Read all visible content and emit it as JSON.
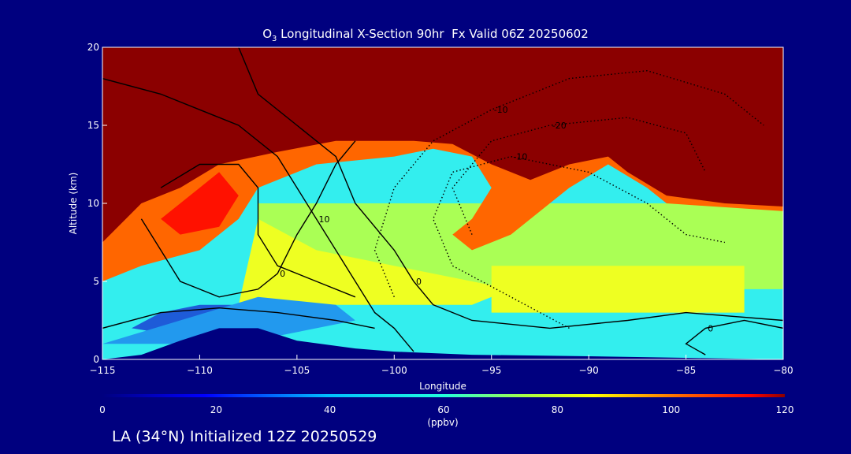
{
  "chart_data": {
    "type": "contour",
    "title_prefix": "O",
    "title_sub": "3",
    "title_rest": " Longitudinal X-Section 90hr  Fx Valid 06Z 20250602",
    "subtitle": "LA (34°N) Initialized 12Z 20250529",
    "xlabel": "Longitude",
    "ylabel": "Altitude (km)",
    "xlim": [
      -115,
      -80
    ],
    "ylim": [
      0,
      20
    ],
    "x_ticks": [
      -115,
      -110,
      -105,
      -100,
      -95,
      -90,
      -85,
      -80
    ],
    "y_ticks": [
      0,
      5,
      10,
      15,
      20
    ],
    "colorbar": {
      "label": "(ppbv)",
      "min": 0,
      "max": 120,
      "ticks": [
        0,
        20,
        40,
        60,
        80,
        100,
        120
      ]
    },
    "fill_regions": [
      {
        "color": "#33eeee",
        "points": [
          [
            -115,
            0
          ],
          [
            -80,
            0
          ],
          [
            -80,
            6
          ],
          [
            -115,
            6
          ]
        ]
      },
      {
        "color": "#aaff55",
        "points": [
          [
            -107,
            4.5
          ],
          [
            -80,
            4.5
          ],
          [
            -80,
            10
          ],
          [
            -107,
            10
          ]
        ]
      },
      {
        "color": "#eeff22",
        "points": [
          [
            -108,
            3.5
          ],
          [
            -96,
            3.5
          ],
          [
            -94,
            4.5
          ],
          [
            -100,
            6
          ],
          [
            -104,
            7
          ],
          [
            -107,
            9
          ]
        ]
      },
      {
        "color": "#eeff22",
        "points": [
          [
            -95,
            6
          ],
          [
            -82,
            6
          ],
          [
            -82,
            3
          ],
          [
            -95,
            3
          ]
        ]
      },
      {
        "color": "#ff6600",
        "points": [
          [
            -115,
            5
          ],
          [
            -113,
            6
          ],
          [
            -110,
            7
          ],
          [
            -108,
            9
          ],
          [
            -107,
            11
          ],
          [
            -104,
            12.5
          ],
          [
            -100,
            13
          ],
          [
            -98,
            13.5
          ],
          [
            -96,
            13
          ],
          [
            -95,
            11
          ],
          [
            -96,
            9
          ],
          [
            -97,
            8
          ],
          [
            -96,
            7
          ],
          [
            -94,
            8
          ],
          [
            -91,
            11
          ],
          [
            -89,
            12.5
          ],
          [
            -87,
            11
          ],
          [
            -86,
            10
          ],
          [
            -80,
            9.5
          ],
          [
            -80,
            20
          ],
          [
            -115,
            20
          ]
        ]
      },
      {
        "color": "#8b0000",
        "points": [
          [
            -115,
            7.5
          ],
          [
            -113,
            10
          ],
          [
            -111,
            11
          ],
          [
            -109,
            12.5
          ],
          [
            -106,
            13.3
          ],
          [
            -103,
            14
          ],
          [
            -99,
            14
          ],
          [
            -97,
            13.8
          ],
          [
            -95,
            12.5
          ],
          [
            -93,
            11.5
          ],
          [
            -91,
            12.5
          ],
          [
            -89,
            13
          ],
          [
            -88,
            12
          ],
          [
            -86,
            10.5
          ],
          [
            -83,
            10
          ],
          [
            -80,
            9.8
          ],
          [
            -80,
            20
          ],
          [
            -115,
            20
          ]
        ]
      },
      {
        "color": "#ff1100",
        "points": [
          [
            -112,
            9
          ],
          [
            -110,
            11
          ],
          [
            -109,
            12
          ],
          [
            -108,
            10.5
          ],
          [
            -109,
            8.5
          ],
          [
            -111,
            8
          ]
        ]
      },
      {
        "color": "#1e5bd8",
        "points": [
          [
            -113.5,
            2
          ],
          [
            -112,
            3
          ],
          [
            -110,
            3.5
          ],
          [
            -108,
            3.5
          ],
          [
            -107,
            3
          ],
          [
            -108,
            2
          ],
          [
            -111,
            1.5
          ]
        ]
      },
      {
        "color": "#2299ee",
        "points": [
          [
            -115,
            1
          ],
          [
            -111,
            2.5
          ],
          [
            -107,
            4
          ],
          [
            -103,
            3.5
          ],
          [
            -102,
            2.5
          ],
          [
            -106,
            1.5
          ],
          [
            -110,
            1
          ]
        ]
      }
    ],
    "terrain": [
      [
        -115,
        0
      ],
      [
        -113,
        0.3
      ],
      [
        -111,
        1.2
      ],
      [
        -109,
        2
      ],
      [
        -107,
        2
      ],
      [
        -105,
        1.2
      ],
      [
        -102,
        0.7
      ],
      [
        -100,
        0.5
      ],
      [
        -96,
        0.3
      ],
      [
        -90,
        0.2
      ],
      [
        -85,
        0.1
      ],
      [
        -80,
        0
      ],
      [
        -80,
        0
      ],
      [
        -115,
        0
      ]
    ],
    "contours": [
      {
        "label": "10",
        "style": "solid",
        "points": [
          [
            -115,
            18
          ],
          [
            -112,
            17
          ],
          [
            -110,
            16
          ],
          [
            -108,
            15
          ],
          [
            -106,
            13
          ],
          [
            -105,
            11
          ],
          [
            -104,
            9
          ],
          [
            -103,
            7
          ],
          [
            -102,
            5
          ],
          [
            -101,
            3
          ],
          [
            -100,
            2
          ],
          [
            -99,
            0.5
          ]
        ]
      },
      {
        "label": "0",
        "style": "solid",
        "points": [
          [
            -108,
            20
          ],
          [
            -107,
            17
          ],
          [
            -105,
            15
          ],
          [
            -103,
            13
          ],
          [
            -102,
            10
          ],
          [
            -100,
            7
          ],
          [
            -99,
            5
          ],
          [
            -98,
            3.5
          ],
          [
            -96,
            2.5
          ],
          [
            -92,
            2
          ],
          [
            -88,
            2.5
          ],
          [
            -85,
            3
          ],
          [
            -80,
            2.5
          ]
        ]
      },
      {
        "label": "",
        "style": "solid",
        "points": [
          [
            -112,
            11
          ],
          [
            -110,
            12.5
          ],
          [
            -108,
            12.5
          ],
          [
            -107,
            11
          ],
          [
            -107,
            8
          ],
          [
            -106,
            6
          ],
          [
            -104,
            5
          ],
          [
            -102,
            4
          ]
        ]
      },
      {
        "label": "0",
        "style": "solid",
        "points": [
          [
            -113,
            9
          ],
          [
            -112,
            7
          ],
          [
            -111,
            5
          ],
          [
            -109,
            4
          ],
          [
            -107,
            4.5
          ],
          [
            -106,
            5.5
          ],
          [
            -105,
            8
          ],
          [
            -104,
            10
          ],
          [
            -103,
            12.5
          ],
          [
            -102,
            14
          ]
        ]
      },
      {
        "label": "",
        "style": "solid",
        "points": [
          [
            -115,
            2
          ],
          [
            -112,
            3
          ],
          [
            -109,
            3.3
          ],
          [
            -106,
            3
          ],
          [
            -103,
            2.5
          ],
          [
            -101,
            2
          ]
        ]
      },
      {
        "label": "0",
        "style": "solid",
        "points": [
          [
            -84,
            0.3
          ],
          [
            -85,
            1
          ],
          [
            -84,
            2
          ],
          [
            -82,
            2.5
          ],
          [
            -80,
            2
          ]
        ]
      },
      {
        "label": "-10",
        "style": "dotted",
        "points": [
          [
            -100,
            4
          ],
          [
            -101,
            7
          ],
          [
            -100,
            11
          ],
          [
            -98,
            14
          ],
          [
            -95,
            16
          ],
          [
            -91,
            18
          ],
          [
            -87,
            18.5
          ],
          [
            -83,
            17
          ],
          [
            -81,
            15
          ]
        ]
      },
      {
        "label": "-20",
        "style": "dotted",
        "points": [
          [
            -96,
            8
          ],
          [
            -97,
            11
          ],
          [
            -95,
            14
          ],
          [
            -92,
            15
          ],
          [
            -88,
            15.5
          ],
          [
            -85,
            14.5
          ],
          [
            -84,
            12
          ]
        ]
      },
      {
        "label": "-10",
        "style": "dotted",
        "points": [
          [
            -91,
            2
          ],
          [
            -94,
            4
          ],
          [
            -97,
            6
          ],
          [
            -98,
            9
          ],
          [
            -97,
            12
          ],
          [
            -94,
            13
          ],
          [
            -90,
            12
          ],
          [
            -87,
            10
          ],
          [
            -85,
            8
          ],
          [
            -83,
            7.5
          ]
        ]
      }
    ]
  }
}
